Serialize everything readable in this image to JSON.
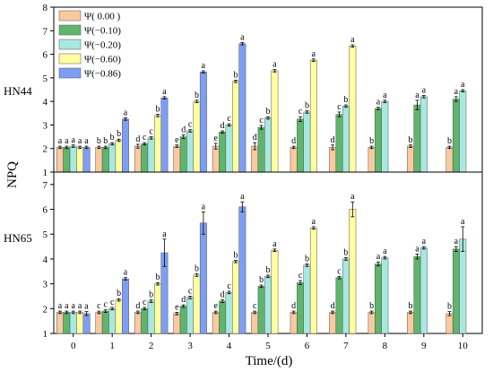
{
  "chart_data": {
    "type": "bar",
    "xlabel": "Time/(d)",
    "ylabel": "NPQ",
    "categories": [
      "0",
      "1",
      "2",
      "3",
      "4",
      "5",
      "6",
      "7",
      "8",
      "9",
      "10"
    ],
    "legend": {
      "placement": "top-left",
      "entries": [
        "Ψ( 0.00 )",
        "Ψ(−0.10)",
        "Ψ(−0.20)",
        "Ψ(−0.60)",
        "Ψ(−0.86)"
      ]
    },
    "series_colors": [
      "#f9c9a0",
      "#5fb56c",
      "#a8e8e0",
      "#ffffa0",
      "#7e9ef5"
    ],
    "panels": [
      {
        "label": "HN44",
        "ylim": [
          1,
          8
        ],
        "yticks": [
          "1",
          "2",
          "3",
          "4",
          "5",
          "6",
          "7",
          "8"
        ],
        "series": [
          {
            "values": [
              2.05,
              2.05,
              2.1,
              2.1,
              2.1,
              2.1,
              2.05,
              2.05,
              2.05,
              2.1,
              2.05
            ],
            "errors": [
              0.05,
              0.05,
              0.08,
              0.05,
              0.12,
              0.15,
              0.05,
              0.1,
              0.05,
              0.05,
              0.05
            ],
            "letters": [
              "a",
              "b",
              "d",
              "e",
              "e",
              "d",
              "d",
              "d",
              "b",
              "b",
              "b"
            ]
          },
          {
            "values": [
              2.05,
              2.05,
              2.2,
              2.5,
              2.7,
              2.9,
              3.25,
              3.45,
              3.7,
              3.85,
              4.1
            ],
            "errors": [
              0.05,
              0.05,
              0.05,
              0.08,
              0.05,
              0.08,
              0.1,
              0.1,
              0.05,
              0.2,
              0.1
            ],
            "letters": [
              "a",
              "b",
              "c",
              "d",
              "d",
              "c",
              "c",
              "c",
              "a",
              "a",
              "a"
            ]
          },
          {
            "values": [
              2.1,
              2.2,
              2.45,
              2.75,
              3.0,
              3.3,
              3.55,
              3.8,
              4.0,
              4.2,
              4.45
            ],
            "errors": [
              0.05,
              0.05,
              0.05,
              0.05,
              0.05,
              0.05,
              0.05,
              0.05,
              0.05,
              0.05,
              0.05
            ],
            "letters": [
              "a",
              "b",
              "c",
              "c",
              "c",
              "b",
              "b",
              "b",
              "a",
              "a",
              "a"
            ]
          },
          {
            "values": [
              2.05,
              2.35,
              3.4,
              4.0,
              4.85,
              5.3,
              5.75,
              6.35
            ],
            "errors": [
              0.05,
              0.05,
              0.05,
              0.05,
              0.05,
              0.05,
              0.05,
              0.05
            ],
            "letters": [
              "a",
              "b",
              "b",
              "b",
              "b",
              "a",
              "a",
              "a"
            ]
          },
          {
            "values": [
              2.05,
              3.25,
              4.15,
              5.25,
              6.45
            ],
            "errors": [
              0.05,
              0.05,
              0.05,
              0.05,
              0.05
            ],
            "letters": [
              "a",
              "a",
              "a",
              "a",
              "a"
            ]
          }
        ]
      },
      {
        "label": "HN65",
        "ylim": [
          1,
          7.5
        ],
        "yticks": [
          "1",
          "2",
          "3",
          "4",
          "5",
          "6",
          "7"
        ],
        "series": [
          {
            "values": [
              1.85,
              1.85,
              1.85,
              1.8,
              1.85,
              1.85,
              1.85,
              1.85,
              1.85,
              1.85,
              1.8
            ],
            "errors": [
              0.05,
              0.05,
              0.05,
              0.05,
              0.05,
              0.05,
              0.05,
              0.05,
              0.05,
              0.05,
              0.08
            ],
            "letters": [
              "a",
              "c",
              "d",
              "e",
              "e",
              "c",
              "d",
              "d",
              "b",
              "b",
              "b"
            ]
          },
          {
            "values": [
              1.85,
              1.9,
              2.0,
              2.1,
              2.3,
              2.9,
              3.05,
              3.25,
              3.8,
              4.1,
              4.4
            ],
            "errors": [
              0.05,
              0.05,
              0.05,
              0.05,
              0.05,
              0.05,
              0.08,
              0.05,
              0.08,
              0.1,
              0.1
            ],
            "letters": [
              "a",
              "c",
              "c",
              "d",
              "d",
              "b",
              "c",
              "c",
              "a",
              "a",
              "a"
            ]
          },
          {
            "values": [
              1.85,
              2.0,
              2.3,
              2.45,
              2.65,
              3.3,
              3.75,
              4.0,
              4.05,
              4.45,
              4.8
            ],
            "errors": [
              0.05,
              0.05,
              0.05,
              0.05,
              0.05,
              0.05,
              0.05,
              0.05,
              0.05,
              0.05,
              0.5
            ],
            "letters": [
              "a",
              "c",
              "b",
              "c",
              "c",
              "b",
              "b",
              "b",
              "a",
              "a",
              "a"
            ]
          },
          {
            "values": [
              1.85,
              2.35,
              3.0,
              3.35,
              3.9,
              4.35,
              5.25,
              6.0
            ],
            "errors": [
              0.05,
              0.05,
              0.05,
              0.05,
              0.05,
              0.05,
              0.05,
              0.3
            ],
            "letters": [
              "a",
              "b",
              "b",
              "b",
              "b",
              "a",
              "a",
              "a"
            ]
          },
          {
            "values": [
              1.8,
              3.2,
              4.25,
              5.45,
              6.1
            ],
            "errors": [
              0.08,
              0.05,
              0.55,
              0.45,
              0.2
            ],
            "letters": [
              "a",
              "a",
              "a",
              "a",
              "a"
            ]
          }
        ]
      }
    ]
  }
}
